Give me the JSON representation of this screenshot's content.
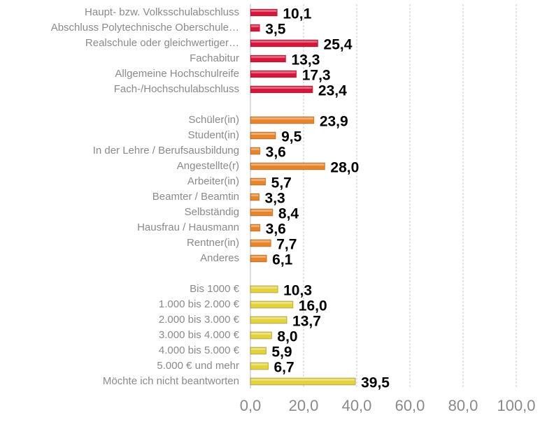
{
  "chart_data": {
    "type": "bar",
    "orientation": "horizontal",
    "categories": [
      "Haupt- bzw. Volksschulabschluss",
      "Abschluss Polytechnische Oberschule…",
      "Realschule oder gleichwertiger…",
      "Fachabitur",
      "Allgemeine Hochschulreife",
      "Fach-/Hochschulabschluss",
      null,
      "Schüler(in)",
      "Student(in)",
      "In der Lehre / Berufsausbildung",
      "Angestellte(r)",
      "Arbeiter(in)",
      "Beamter / Beamtin",
      "Selbständig",
      "Hausfrau / Hausmann",
      "Rentner(in)",
      "Anderes",
      null,
      "Bis 1000 €",
      "1.000 bis 2.000 €",
      "2.000 bis 3.000 €",
      "3.000 bis 4.000 €",
      "4.000 bis 5.000 €",
      "5.000 € und mehr",
      "Möchte ich nicht beantworten"
    ],
    "values": [
      10.1,
      3.5,
      25.4,
      13.3,
      17.3,
      23.4,
      null,
      23.9,
      9.5,
      3.6,
      28.0,
      5.7,
      3.3,
      8.4,
      3.6,
      7.7,
      6.1,
      null,
      10.3,
      16.0,
      13.7,
      8.0,
      5.9,
      6.7,
      39.5
    ],
    "value_labels": [
      "10,1",
      "3,5",
      "25,4",
      "13,3",
      "17,3",
      "23,4",
      null,
      "23,9",
      "9,5",
      "3,6",
      "28,0",
      "5,7",
      "3,3",
      "8,4",
      "3,6",
      "7,7",
      "6,1",
      null,
      "10,3",
      "16,0",
      "13,7",
      "8,0",
      "5,9",
      "6,7",
      "39,5"
    ],
    "colors": [
      "#d8163c",
      "#d8163c",
      "#d8163c",
      "#d8163c",
      "#d8163c",
      "#d8163c",
      null,
      "#e8852a",
      "#e8852a",
      "#e8852a",
      "#e8852a",
      "#e8852a",
      "#e8852a",
      "#e8852a",
      "#e8852a",
      "#e8852a",
      "#e8852a",
      null,
      "#e4d23a",
      "#e4d23a",
      "#e4d23a",
      "#e4d23a",
      "#e4d23a",
      "#e4d23a",
      "#e4d23a"
    ],
    "xlim": [
      0,
      100
    ],
    "xticks": [
      {
        "value": 0,
        "label": "0,0"
      },
      {
        "value": 20,
        "label": "20,0"
      },
      {
        "value": 40,
        "label": "40,0"
      },
      {
        "value": 60,
        "label": "60,0"
      },
      {
        "value": 80,
        "label": "80,0"
      },
      {
        "value": 100,
        "label": "100,0"
      }
    ],
    "grid": true
  }
}
